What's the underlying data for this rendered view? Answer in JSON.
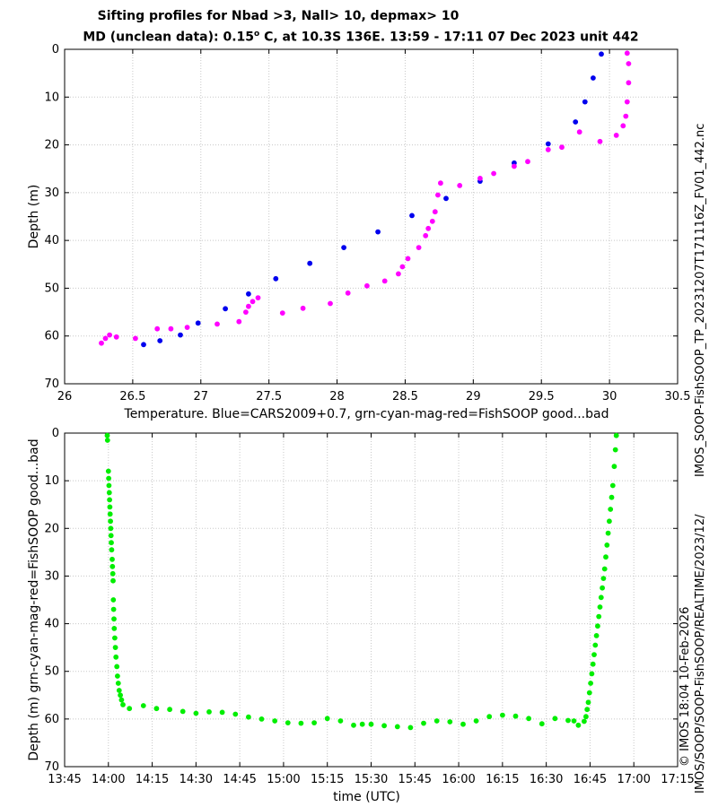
{
  "chart_data": [
    {
      "type": "scatter",
      "title": "Sifting profiles for Nbad >3, Nall> 10, depmax> 10",
      "subtitle": "MD (unclean data): 0.15",
      "subtitle_deg": "o",
      "subtitle_rest": " C, at 10.3S 136E. 13:59 - 17:11 07 Dec 2023 unit 442",
      "xlabel": "Temperature. Blue=CARS2009+0.7, grn-cyan-mag-red=FishSOOP good...bad",
      "ylabel": "Depth (m)",
      "xlim": [
        26,
        30.5
      ],
      "ylim": [
        70,
        0
      ],
      "xticks": [
        "26",
        "26.5",
        "27",
        "27.5",
        "28",
        "28.5",
        "29",
        "29.5",
        "30",
        "30.5"
      ],
      "yticks": [
        "0",
        "10",
        "20",
        "30",
        "40",
        "50",
        "60",
        "70"
      ],
      "grid": true,
      "series": [
        {
          "color": "#0000ee",
          "x": [
            26.58,
            26.7,
            26.85,
            26.98,
            27.18,
            27.35,
            27.55,
            27.8,
            28.05,
            28.3,
            28.55,
            28.8,
            29.05,
            29.3,
            29.55,
            29.75,
            29.82,
            29.88,
            29.94
          ],
          "y": [
            61.8,
            61.0,
            59.8,
            57.3,
            54.3,
            51.2,
            48.0,
            44.8,
            41.5,
            38.2,
            34.8,
            31.2,
            27.6,
            23.8,
            19.8,
            15.2,
            11.0,
            6.0,
            1.0
          ]
        },
        {
          "color": "#ff00ff",
          "x": [
            26.27,
            26.3,
            26.33,
            26.38,
            26.52,
            26.68,
            26.78,
            26.9,
            27.12,
            27.28,
            27.33,
            27.35,
            27.38,
            27.42,
            27.6,
            27.75,
            27.95,
            28.08,
            28.22,
            28.35,
            28.45,
            28.48,
            28.52,
            28.6,
            28.65,
            28.67,
            28.7,
            28.72,
            28.74,
            28.76,
            28.9,
            29.05,
            29.15,
            29.3,
            29.4,
            29.55,
            29.65,
            29.78,
            29.93,
            30.05,
            30.1,
            30.12,
            30.13,
            30.14,
            30.14,
            30.13
          ],
          "y": [
            61.5,
            60.5,
            59.8,
            60.2,
            60.5,
            58.5,
            58.5,
            58.2,
            57.5,
            57.0,
            55.0,
            53.8,
            52.8,
            52.0,
            55.2,
            54.2,
            53.2,
            51.0,
            49.5,
            48.5,
            47.0,
            45.5,
            43.8,
            41.5,
            39.0,
            37.5,
            36.0,
            34.0,
            30.5,
            28.0,
            28.5,
            27.0,
            26.0,
            24.5,
            23.5,
            21.0,
            20.5,
            17.3,
            19.3,
            18.0,
            16.0,
            14.0,
            11.0,
            7.0,
            3.0,
            0.8
          ]
        }
      ]
    },
    {
      "type": "scatter",
      "xlabel": "time (UTC)",
      "ylabel": "Depth (m) grn-cyan-mag-red=FishSOOP good...bad",
      "xlim": [
        825,
        1035
      ],
      "ylim": [
        70,
        0
      ],
      "xticks": [
        "13:45",
        "14:00",
        "14:15",
        "14:30",
        "14:45",
        "15:00",
        "15:15",
        "15:30",
        "15:45",
        "16:00",
        "16:15",
        "16:30",
        "16:45",
        "17:00",
        "17:15"
      ],
      "yticks": [
        "0",
        "10",
        "20",
        "30",
        "40",
        "50",
        "60",
        "70"
      ],
      "grid": true,
      "series": [
        {
          "color": "#00ee00",
          "x": [
            839.6,
            839.7,
            840.0,
            840.1,
            840.2,
            840.3,
            840.4,
            840.5,
            840.6,
            840.7,
            840.8,
            840.9,
            841.0,
            841.1,
            841.3,
            841.4,
            841.5,
            841.6,
            841.7,
            841.8,
            841.9,
            842.0,
            842.2,
            842.4,
            842.6,
            842.9,
            843.1,
            843.4,
            843.7,
            844.1,
            844.5,
            845.0,
            847.2,
            852.0,
            856.5,
            861.0,
            865.5,
            870.0,
            874.5,
            879.0,
            883.5,
            888.0,
            892.5,
            897.0,
            901.5,
            906.0,
            910.5,
            915.0,
            919.5,
            924.0,
            927.0,
            930.0,
            934.5,
            939.0,
            943.5,
            948.0,
            952.5,
            957.0,
            961.5,
            966.0,
            970.5,
            975.0,
            979.5,
            984.0,
            988.5,
            993.0,
            997.5,
            999.5,
            1001.0,
            1003.0,
            1003.6,
            1004.0,
            1004.4,
            1004.8,
            1005.2,
            1005.6,
            1006.0,
            1006.4,
            1006.8,
            1007.2,
            1007.6,
            1008.0,
            1008.4,
            1008.8,
            1009.2,
            1009.6,
            1010.0,
            1010.4,
            1010.8,
            1011.2,
            1011.6,
            1012.0,
            1012.4,
            1012.8,
            1013.3,
            1013.7,
            1014.0
          ],
          "y": [
            0.5,
            1.5,
            8.0,
            9.5,
            11.0,
            12.5,
            14.0,
            15.5,
            17.0,
            18.5,
            20.0,
            21.5,
            23.0,
            24.5,
            26.5,
            28.0,
            29.5,
            31.0,
            35.0,
            37.0,
            39.0,
            41.0,
            43.0,
            45.0,
            47.0,
            49.0,
            51.0,
            52.5,
            54.0,
            55.0,
            56.0,
            57.0,
            57.8,
            57.2,
            57.8,
            58.0,
            58.4,
            58.8,
            58.5,
            58.6,
            59.0,
            59.6,
            60.0,
            60.4,
            60.8,
            60.9,
            60.8,
            59.9,
            60.4,
            61.3,
            61.1,
            61.1,
            61.4,
            61.6,
            61.8,
            60.9,
            60.4,
            60.6,
            61.1,
            60.4,
            59.5,
            59.2,
            59.4,
            59.9,
            61.0,
            59.9,
            60.3,
            60.4,
            61.3,
            60.5,
            59.5,
            58.0,
            56.5,
            54.5,
            52.5,
            50.5,
            48.5,
            46.5,
            44.5,
            42.5,
            40.5,
            38.5,
            36.5,
            34.5,
            32.5,
            30.5,
            28.5,
            26.0,
            23.5,
            21.0,
            18.5,
            16.0,
            13.5,
            11.0,
            7.0,
            3.5,
            0.5
          ]
        }
      ]
    }
  ],
  "side_text_top": "IMOS_SOOP-FishSOOP_TP_20231207T171116Z_FV01_442.nc",
  "side_text_bottom": "IMOS/SOOP/SOOP-FishSOOP/REALTIME/2023/12/",
  "side_text_copyright": "© IMOS 18:04 10-Feb-2026"
}
